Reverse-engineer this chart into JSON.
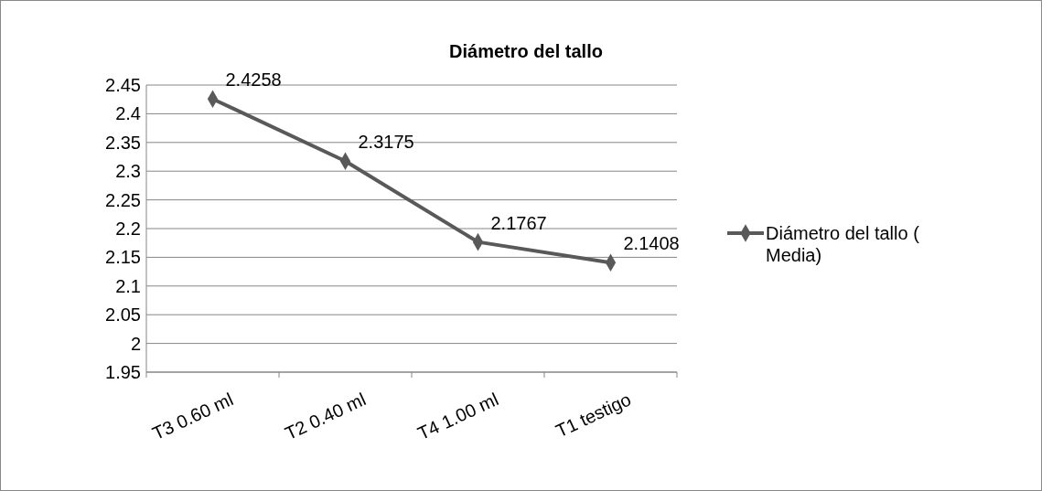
{
  "chart_data": {
    "type": "line",
    "title": "Diámetro del tallo",
    "categories": [
      "T3 0.60 ml",
      "T2 0.40 ml",
      "T4 1.00 ml",
      "T1 testigo"
    ],
    "series": [
      {
        "name": "Diámetro del tallo ( Media)",
        "color": "#595959",
        "values": [
          2.4258,
          2.3175,
          2.1767,
          2.1408
        ]
      }
    ],
    "ylim": [
      1.95,
      2.45
    ],
    "yticks": [
      1.95,
      2,
      2.05,
      2.1,
      2.15,
      2.2,
      2.25,
      2.3,
      2.35,
      2.4,
      2.45
    ],
    "grid": "y",
    "legend": "right",
    "marker": "diamond",
    "data_labels": true
  }
}
